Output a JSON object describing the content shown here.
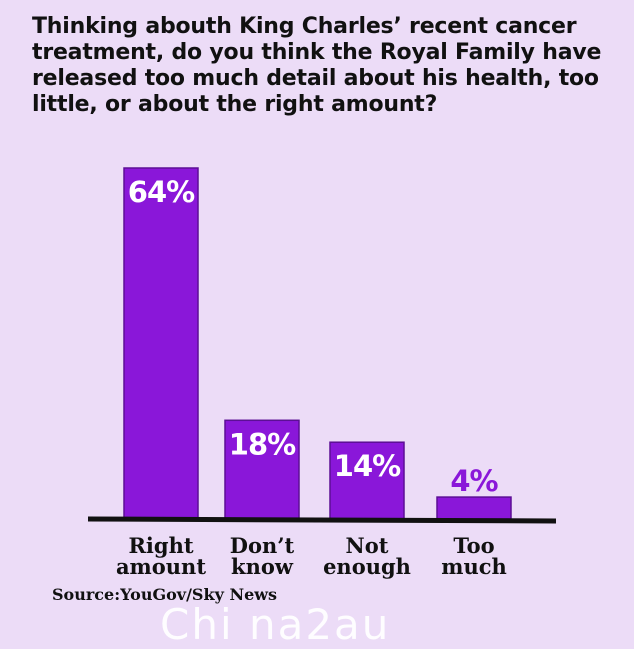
{
  "chart_data": {
    "type": "bar",
    "title": "Thinking abouth King Charles’ recent cancer treatment, do you think the Royal Family have released too much detail about his health, too little, or about the right amount?",
    "categories": [
      [
        "Right",
        "amount"
      ],
      [
        "Don’t",
        "know"
      ],
      [
        "Not",
        "enough"
      ],
      [
        "Too",
        "much"
      ]
    ],
    "values": [
      64,
      18,
      14,
      4
    ],
    "value_labels": [
      "64%",
      "18%",
      "14%",
      "4%"
    ],
    "ylim": [
      0,
      64
    ],
    "grid": false,
    "colors": {
      "bar": "#8a17d9",
      "bar_border": "#5c0f95",
      "label_inside": "#ffffff",
      "label_outside": "#8a17d9",
      "axis": "#111111",
      "background": "#ecdcf7"
    }
  },
  "source": "Source:YouGov/Sky News",
  "watermark": "Chi na2au"
}
